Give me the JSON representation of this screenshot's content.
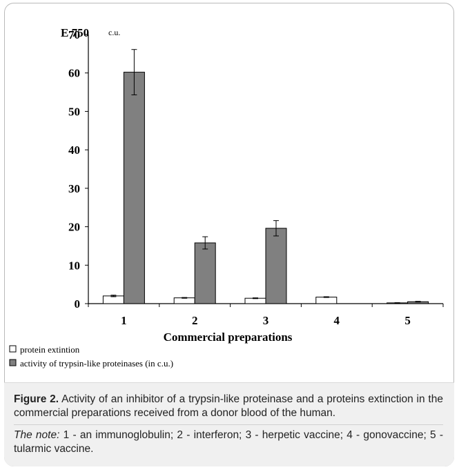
{
  "chart_data": {
    "type": "bar",
    "title": "E 750",
    "ylabel_unit": "c.u.",
    "xlabel": "Commercial preparations",
    "ylim": [
      0,
      70
    ],
    "yticks": [
      0,
      10,
      20,
      30,
      40,
      50,
      60,
      70
    ],
    "categories": [
      "1",
      "2",
      "3",
      "4",
      "5"
    ],
    "series": [
      {
        "name": "protein extintion",
        "color": "#ffffff",
        "values": [
          2.0,
          1.5,
          1.4,
          1.7,
          0.2
        ],
        "errors": [
          0.2,
          0.1,
          0.1,
          0.1,
          0.05
        ]
      },
      {
        "name": "activity of trypsin-like proteinases (in c.u.)",
        "color": "#808080",
        "values": [
          60.2,
          15.8,
          19.6,
          0,
          0.5
        ],
        "errors": [
          5.9,
          1.6,
          2.0,
          0,
          0.1
        ]
      }
    ],
    "legend_placement": "bottom-left",
    "grid": false
  },
  "caption": {
    "label": "Figure 2.",
    "text": " Activity of an inhibitor of a trypsin-like proteinase and a proteins extinction in the commercial preparations received from a donor blood of the human.",
    "note_label": "The note:",
    "note_text": " 1 - an immunoglobulin; 2 - interferon; 3 - herpetic vaccine; 4 - gonovaccine; 5 - tularmic vaccine."
  }
}
